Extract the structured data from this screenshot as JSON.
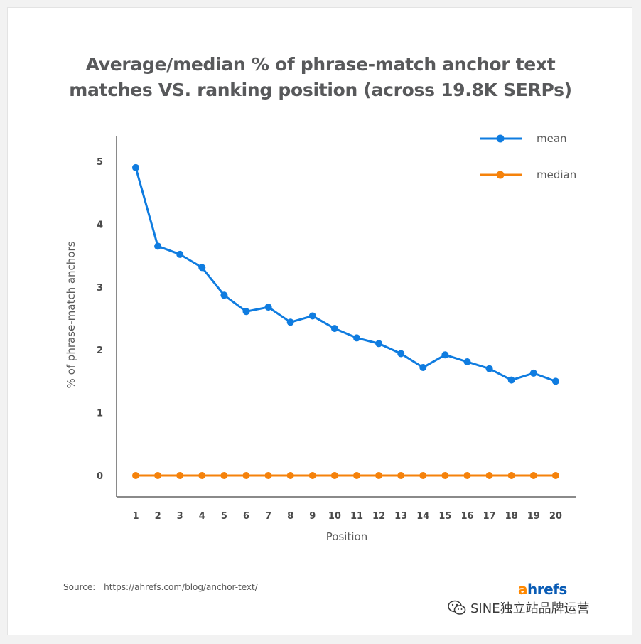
{
  "title": {
    "line1": "Average/median % of phrase-match anchor text",
    "line2": "matches VS. ranking position (across 19.8K SERPs)"
  },
  "chart_data": {
    "type": "line",
    "title": "Average/median % of phrase-match anchor text matches VS. ranking position (across 19.8K SERPs)",
    "xlabel": "Position",
    "ylabel": "% of phrase-match anchors",
    "x": [
      1,
      2,
      3,
      4,
      5,
      6,
      7,
      8,
      9,
      10,
      11,
      12,
      13,
      14,
      15,
      16,
      17,
      18,
      19,
      20
    ],
    "yticks": [
      0,
      1,
      2,
      3,
      4,
      5
    ],
    "ylim": [
      -0.3,
      5.35
    ],
    "grid": false,
    "legend_position": "top-right",
    "series": [
      {
        "name": "mean",
        "color": "#0f7ce0",
        "values": [
          4.9,
          3.65,
          3.52,
          3.31,
          2.87,
          2.61,
          2.68,
          2.44,
          2.54,
          2.34,
          2.19,
          2.1,
          1.94,
          1.72,
          1.92,
          1.81,
          1.7,
          1.52,
          1.63,
          1.5
        ]
      },
      {
        "name": "median",
        "color": "#f5820b",
        "values": [
          0,
          0,
          0,
          0,
          0,
          0,
          0,
          0,
          0,
          0,
          0,
          0,
          0,
          0,
          0,
          0,
          0,
          0,
          0,
          0
        ]
      }
    ]
  },
  "source": {
    "label": "Source:",
    "url": "https://ahrefs.com/blog/anchor-text/"
  },
  "logo": {
    "first": "a",
    "rest": "hrefs"
  },
  "watermark": {
    "text": "SINE独立站品牌运营"
  }
}
